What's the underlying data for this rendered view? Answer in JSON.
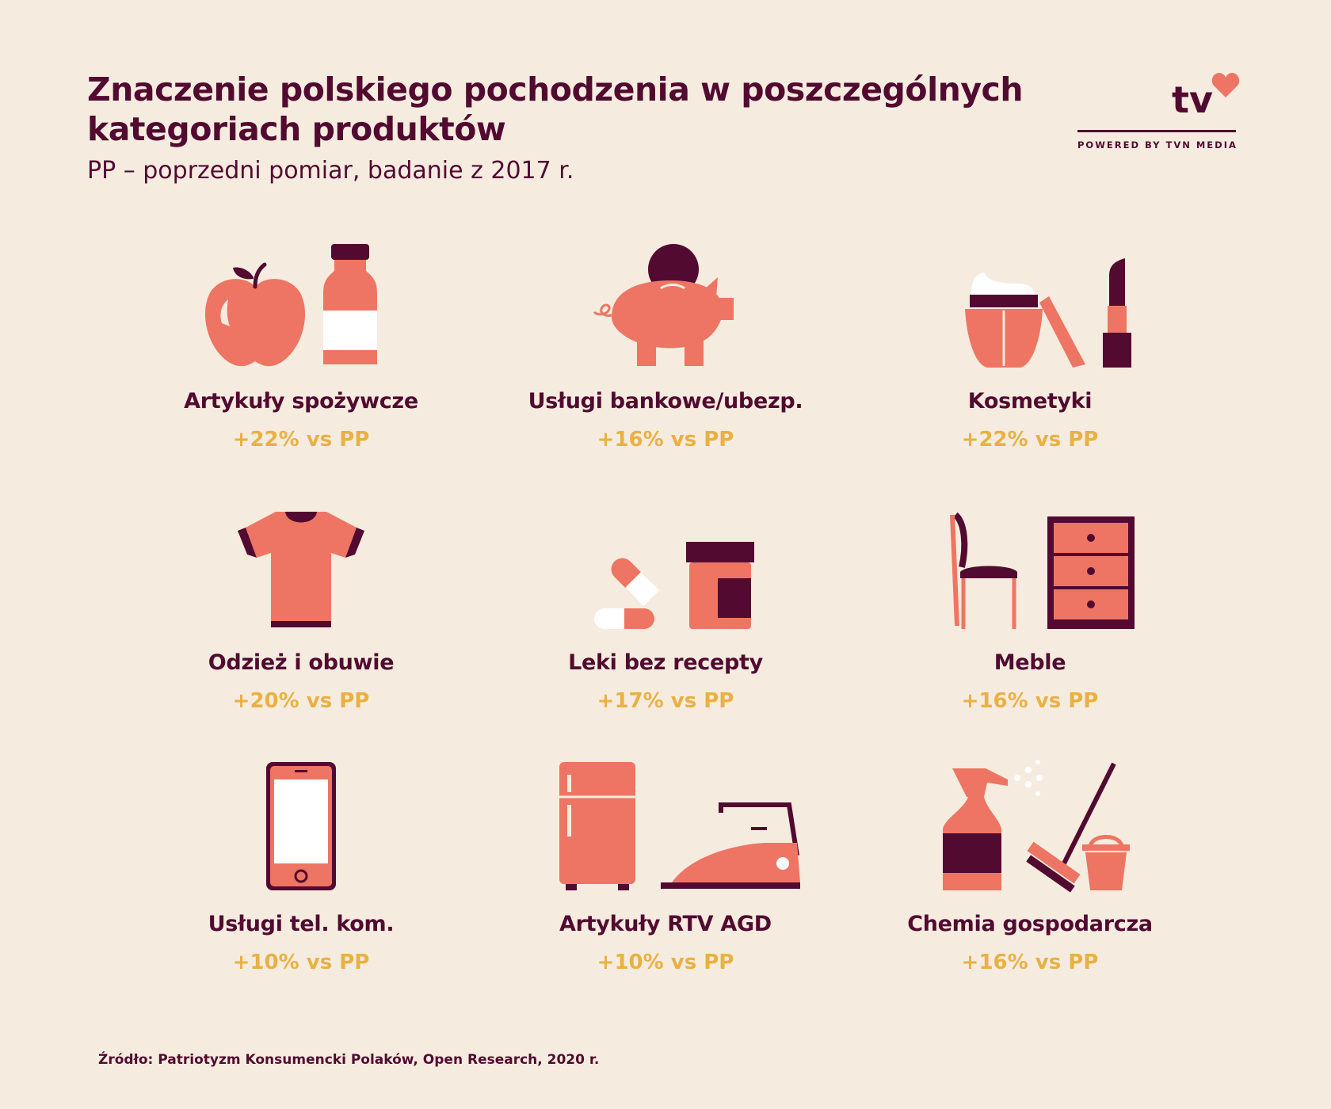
{
  "header": {
    "title": "Znaczenie polskiego pochodzenia w poszczególnych kategoriach produktów",
    "subtitle": "PP – poprzedni pomiar, badanie z 2017 r."
  },
  "logo": {
    "text": "tv",
    "caption": "POWERED BY TVN MEDIA"
  },
  "colors": {
    "background": "#f5ecdf",
    "dark": "#520a31",
    "accent": "#ee7563",
    "value": "#eab043"
  },
  "categories": [
    {
      "icon": "apple-bottle-icon",
      "label": "Artykuły spożywcze",
      "value": "+22% vs PP"
    },
    {
      "icon": "piggy-bank-icon",
      "label": "Usługi bankowe/ubezp.",
      "value": "+16% vs PP"
    },
    {
      "icon": "cosmetics-icon",
      "label": "Kosmetyki",
      "value": "+22% vs PP"
    },
    {
      "icon": "tshirt-icon",
      "label": "Odzież i obuwie",
      "value": "+20% vs PP"
    },
    {
      "icon": "pills-icon",
      "label": "Leki bez recepty",
      "value": "+17% vs PP"
    },
    {
      "icon": "chair-dresser-icon",
      "label": "Meble",
      "value": "+16% vs PP"
    },
    {
      "icon": "smartphone-icon",
      "label": "Usługi tel. kom.",
      "value": "+10% vs PP"
    },
    {
      "icon": "fridge-iron-icon",
      "label": "Artykuły RTV AGD",
      "value": "+10% vs PP"
    },
    {
      "icon": "cleaning-icon",
      "label": "Chemia gospodarcza",
      "value": "+16% vs PP"
    }
  ],
  "footer": {
    "source": "Źródło: Patriotyzm Konsumencki Polaków, Open Research, 2020 r."
  }
}
